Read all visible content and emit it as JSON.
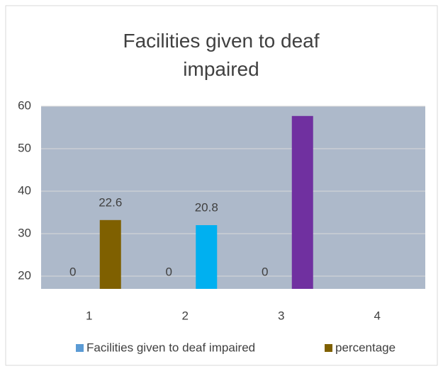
{
  "chart_data": {
    "type": "bar",
    "title": "Facilities given to deaf impaired",
    "categories": [
      "1",
      "2",
      "3",
      "4"
    ],
    "series": [
      {
        "name": "Facilities given to deaf impaired",
        "color": "#5b9bd5",
        "values": [
          0,
          0,
          0,
          null
        ]
      },
      {
        "name": "percentage",
        "color": "#7f6000",
        "colors": [
          "#7f6000",
          "#00b0f0",
          "#7030a0",
          null
        ],
        "values": [
          33.2,
          32,
          57.7,
          null
        ]
      }
    ],
    "annotations": [
      "22.6",
      "20.8"
    ],
    "ylim": [
      17,
      60
    ],
    "yticks": [
      20,
      30,
      40,
      50,
      60
    ],
    "grid": true,
    "legend": "bottom"
  }
}
